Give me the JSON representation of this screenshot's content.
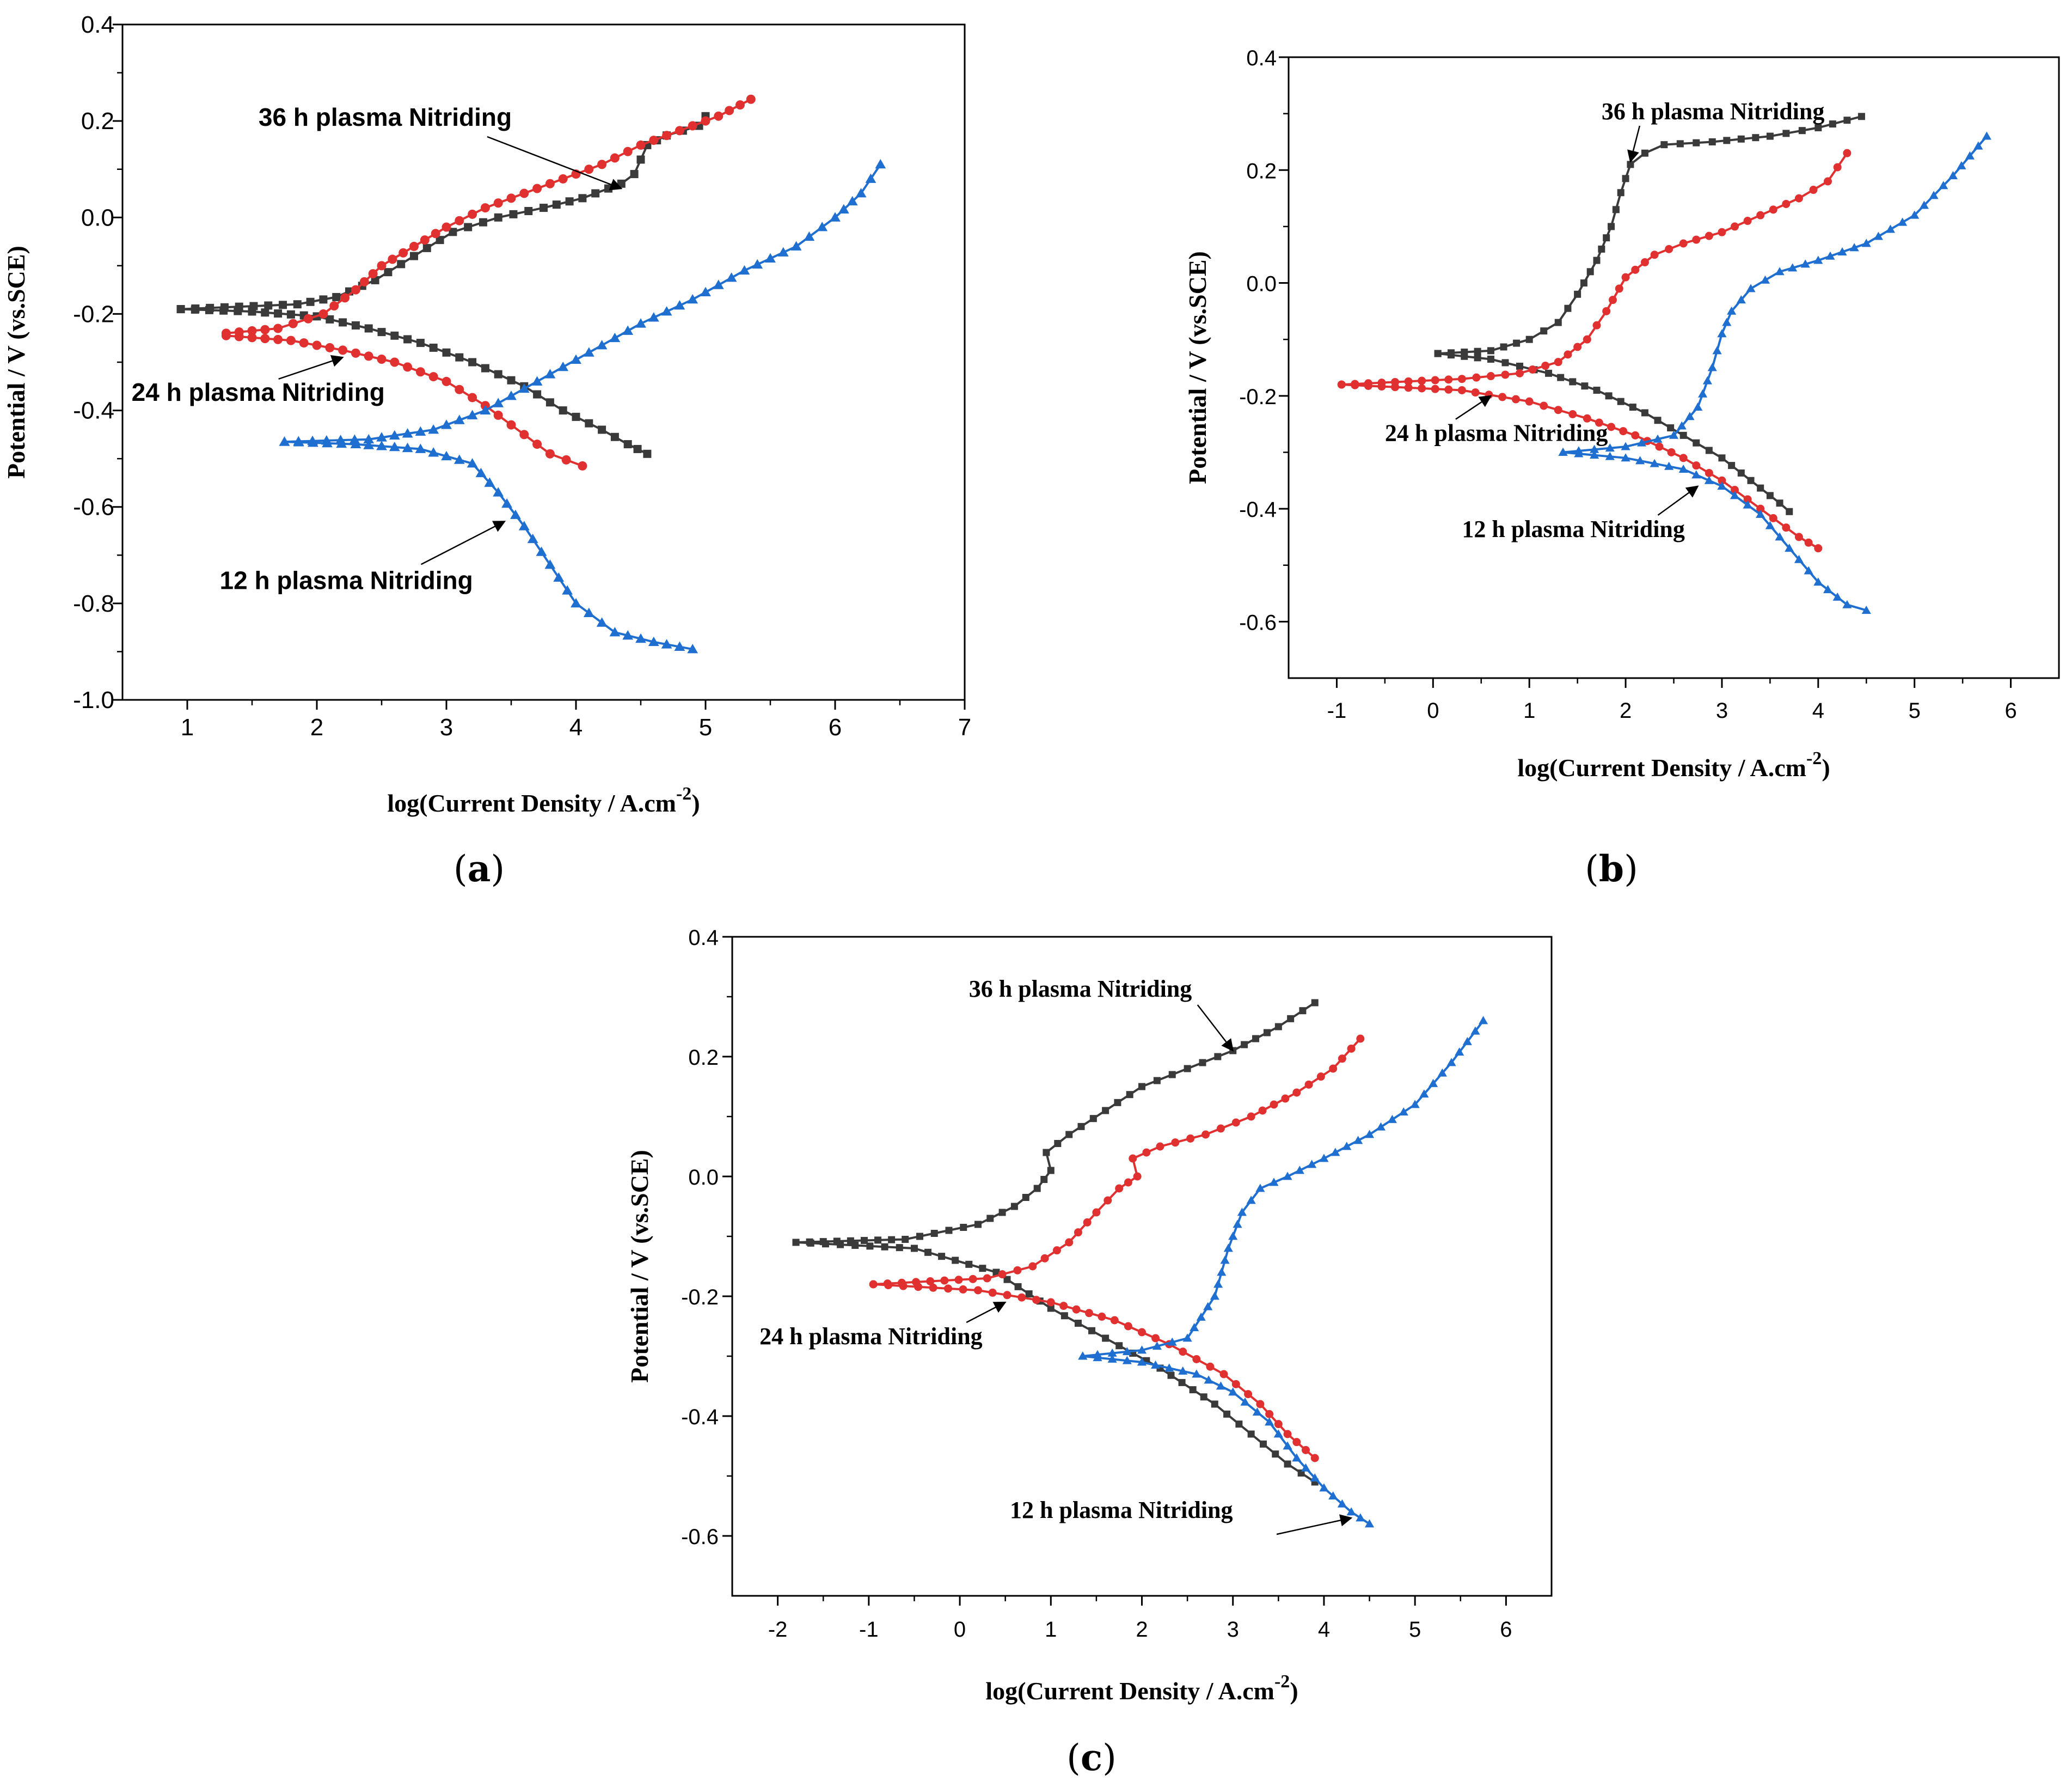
{
  "chart_data": [
    {
      "panel": "a",
      "panel_label": "(a)",
      "type": "line",
      "xlabel": "log(Current Density / A.cm",
      "xlabel_sup": "-2",
      "xlabel_end": ")",
      "ylabel": "Potential / V (vs.SCE)",
      "xlim": [
        0.5,
        7
      ],
      "ylim": [
        -1.0,
        0.4
      ],
      "xticks": [
        "1",
        "2",
        "3",
        "4",
        "5",
        "6",
        "7"
      ],
      "yticks": [
        "-1.0",
        "-0.8",
        "-0.6",
        "-0.4",
        "-0.2",
        "0.0",
        "0.2",
        "0.4"
      ],
      "series": [
        {
          "name": "36 h plasma Nitriding",
          "color": "#3a3a3a",
          "marker": "square",
          "x": [
            0.95,
            1.4,
            1.85,
            2.15,
            2.45,
            2.75,
            3.05,
            3.4,
            3.75,
            4.05,
            4.35,
            4.45,
            4.55,
            4.7,
            4.95,
            5.0
          ],
          "y": [
            -0.19,
            -0.185,
            -0.18,
            -0.165,
            -0.13,
            -0.08,
            -0.03,
            0.0,
            0.02,
            0.04,
            0.07,
            0.09,
            0.15,
            0.17,
            0.19,
            0.21
          ],
          "x2": [
            0.95,
            1.5,
            2.0,
            2.4,
            2.8,
            3.2,
            3.6,
            3.9,
            4.2,
            4.4,
            4.55
          ],
          "y2": [
            -0.19,
            -0.195,
            -0.205,
            -0.23,
            -0.26,
            -0.3,
            -0.35,
            -0.4,
            -0.44,
            -0.47,
            -0.49
          ]
        },
        {
          "name": "24 h plasma Nitriding",
          "color": "#e03030",
          "marker": "circle",
          "x": [
            1.3,
            1.7,
            2.05,
            2.3,
            2.5,
            2.75,
            3.0,
            3.3,
            3.6,
            3.9,
            4.2,
            4.5,
            4.8,
            5.1,
            5.35
          ],
          "y": [
            -0.24,
            -0.23,
            -0.2,
            -0.15,
            -0.1,
            -0.06,
            -0.02,
            0.02,
            0.05,
            0.08,
            0.11,
            0.15,
            0.18,
            0.21,
            0.245
          ],
          "x2": [
            1.3,
            1.8,
            2.2,
            2.6,
            3.0,
            3.3,
            3.6,
            3.8,
            4.05
          ],
          "y2": [
            -0.245,
            -0.255,
            -0.275,
            -0.3,
            -0.34,
            -0.39,
            -0.45,
            -0.49,
            -0.515
          ]
        },
        {
          "name": "12 h plasma Nitriding",
          "color": "#1f6fd1",
          "marker": "triangle",
          "x": [
            1.75,
            2.4,
            2.9,
            3.3,
            3.7,
            4.1,
            4.5,
            4.9,
            5.3,
            5.7,
            6.0,
            6.2,
            6.35
          ],
          "y": [
            -0.465,
            -0.46,
            -0.44,
            -0.4,
            -0.34,
            -0.28,
            -0.22,
            -0.17,
            -0.11,
            -0.06,
            0.0,
            0.05,
            0.11
          ],
          "x2": [
            1.75,
            2.3,
            2.8,
            3.2,
            3.4,
            3.6,
            3.8,
            4.0,
            4.3,
            4.6,
            4.9
          ],
          "y2": [
            -0.465,
            -0.47,
            -0.48,
            -0.51,
            -0.57,
            -0.64,
            -0.72,
            -0.8,
            -0.86,
            -0.88,
            -0.895
          ]
        }
      ],
      "annotations": [
        {
          "text": "36 h plasma Nitriding",
          "tx": 1.55,
          "ty": 0.19,
          "ax": 4.35,
          "ay": 0.06
        },
        {
          "text": "24 h plasma Nitriding",
          "tx": 0.57,
          "ty": -0.38,
          "ax": 2.2,
          "ay": -0.29
        },
        {
          "text": "12 h plasma Nitriding",
          "tx": 1.25,
          "ty": -0.77,
          "ax": 3.45,
          "ay": -0.63
        }
      ]
    },
    {
      "panel": "b",
      "panel_label": "(b)",
      "type": "line",
      "xlabel": "log(Current Density / A.cm",
      "xlabel_sup": "-2",
      "xlabel_end": ")",
      "ylabel": "Potential / V (vs.SCE)",
      "xlim": [
        -1.5,
        6.5
      ],
      "ylim": [
        -0.7,
        0.4
      ],
      "xticks": [
        "-1",
        "0",
        "1",
        "2",
        "3",
        "4",
        "5",
        "6"
      ],
      "yticks": [
        "-0.6",
        "-0.4",
        "-0.2",
        "0.0",
        "0.2",
        "0.4"
      ],
      "series": [
        {
          "name": "36 h plasma Nitriding",
          "color": "#3a3a3a",
          "marker": "square",
          "x": [
            0.05,
            0.6,
            1.0,
            1.3,
            1.5,
            1.7,
            1.85,
            1.95,
            2.05,
            2.2,
            2.4,
            2.9,
            3.5,
            4.0,
            4.45
          ],
          "y": [
            -0.125,
            -0.12,
            -0.1,
            -0.07,
            -0.02,
            0.04,
            0.1,
            0.16,
            0.21,
            0.23,
            0.245,
            0.25,
            0.26,
            0.275,
            0.295
          ],
          "x2": [
            0.05,
            0.6,
            1.2,
            1.7,
            2.2,
            2.6,
            3.0,
            3.3,
            3.6,
            3.7
          ],
          "y2": [
            -0.125,
            -0.135,
            -0.16,
            -0.19,
            -0.23,
            -0.27,
            -0.31,
            -0.35,
            -0.39,
            -0.405
          ]
        },
        {
          "name": "24 h plasma Nitriding",
          "color": "#e03030",
          "marker": "circle",
          "x": [
            -0.95,
            0.3,
            0.9,
            1.3,
            1.6,
            1.8,
            2.0,
            2.3,
            2.6,
            3.0,
            3.4,
            3.8,
            4.1,
            4.3
          ],
          "y": [
            -0.18,
            -0.17,
            -0.16,
            -0.14,
            -0.1,
            -0.05,
            0.01,
            0.05,
            0.07,
            0.09,
            0.12,
            0.15,
            0.18,
            0.23
          ],
          "x2": [
            -0.95,
            0.3,
            1.0,
            1.6,
            2.1,
            2.6,
            3.0,
            3.4,
            3.8,
            4.0
          ],
          "y2": [
            -0.18,
            -0.19,
            -0.21,
            -0.24,
            -0.27,
            -0.31,
            -0.35,
            -0.4,
            -0.45,
            -0.47
          ]
        },
        {
          "name": "12 h plasma Nitriding",
          "color": "#1f6fd1",
          "marker": "triangle",
          "x": [
            1.35,
            2.0,
            2.5,
            2.75,
            2.9,
            3.0,
            3.1,
            3.3,
            3.6,
            4.0,
            4.5,
            5.0,
            5.4,
            5.75
          ],
          "y": [
            -0.3,
            -0.29,
            -0.27,
            -0.22,
            -0.15,
            -0.09,
            -0.05,
            -0.01,
            0.02,
            0.04,
            0.07,
            0.12,
            0.19,
            0.26
          ],
          "x2": [
            1.35,
            2.0,
            2.6,
            3.0,
            3.4,
            3.7,
            4.0,
            4.3,
            4.5
          ],
          "y2": [
            -0.3,
            -0.31,
            -0.33,
            -0.36,
            -0.41,
            -0.47,
            -0.53,
            -0.57,
            -0.58
          ]
        }
      ],
      "annotations": [
        {
          "text": "36 h plasma Nitriding",
          "tx": 1.75,
          "ty": 0.29,
          "ax": 2.05,
          "ay": 0.215
        },
        {
          "text": "24 h plasma Nitriding",
          "tx": -0.5,
          "ty": -0.28,
          "ax": 0.6,
          "ay": -0.2
        },
        {
          "text": "12 h plasma Nitriding",
          "tx": 0.3,
          "ty": -0.45,
          "ax": 2.75,
          "ay": -0.36
        }
      ]
    },
    {
      "panel": "c",
      "panel_label": "(c)",
      "type": "line",
      "xlabel": "log(Current Density / A.cm",
      "xlabel_sup": "-2",
      "xlabel_end": ")",
      "ylabel": "Potential / V (vs.SCE)",
      "xlim": [
        -2.5,
        6.5
      ],
      "ylim": [
        -0.7,
        0.4
      ],
      "xticks": [
        "-2",
        "-1",
        "0",
        "1",
        "2",
        "3",
        "4",
        "5",
        "6"
      ],
      "yticks": [
        "-0.6",
        "-0.4",
        "-0.2",
        "0.0",
        "0.2",
        "0.4"
      ],
      "series": [
        {
          "name": "36 h plasma Nitriding",
          "color": "#3a3a3a",
          "marker": "square",
          "x": [
            -1.8,
            -0.6,
            0.2,
            0.6,
            0.85,
            1.0,
            0.95,
            1.2,
            1.6,
            2.0,
            2.5,
            3.0,
            3.5,
            3.9
          ],
          "y": [
            -0.11,
            -0.105,
            -0.08,
            -0.05,
            -0.02,
            0.01,
            0.04,
            0.07,
            0.11,
            0.15,
            0.18,
            0.21,
            0.25,
            0.29
          ],
          "x2": [
            -1.8,
            -0.5,
            0.4,
            1.0,
            1.6,
            2.2,
            2.8,
            3.2,
            3.6,
            3.9
          ],
          "y2": [
            -0.11,
            -0.12,
            -0.16,
            -0.22,
            -0.27,
            -0.32,
            -0.38,
            -0.43,
            -0.48,
            -0.51
          ]
        },
        {
          "name": "24 h plasma Nitriding",
          "color": "#e03030",
          "marker": "circle",
          "x": [
            -0.95,
            0.3,
            0.8,
            1.2,
            1.5,
            1.75,
            1.95,
            1.9,
            2.2,
            2.7,
            3.2,
            3.7,
            4.1,
            4.4
          ],
          "y": [
            -0.18,
            -0.17,
            -0.15,
            -0.11,
            -0.06,
            -0.02,
            0.0,
            0.03,
            0.05,
            0.07,
            0.1,
            0.14,
            0.18,
            0.23
          ],
          "x2": [
            -0.95,
            0.2,
            1.0,
            1.7,
            2.3,
            2.9,
            3.3,
            3.6,
            3.9
          ],
          "y2": [
            -0.18,
            -0.19,
            -0.21,
            -0.24,
            -0.28,
            -0.33,
            -0.38,
            -0.43,
            -0.47
          ]
        },
        {
          "name": "12 h plasma Nitriding",
          "color": "#1f6fd1",
          "marker": "triangle",
          "x": [
            1.35,
            2.0,
            2.5,
            2.8,
            2.95,
            3.1,
            3.3,
            3.6,
            4.0,
            4.5,
            5.0,
            5.4,
            5.75
          ],
          "y": [
            -0.3,
            -0.29,
            -0.27,
            -0.2,
            -0.12,
            -0.06,
            -0.02,
            0.0,
            0.03,
            0.07,
            0.12,
            0.19,
            0.26
          ],
          "x2": [
            1.35,
            2.0,
            2.6,
            3.0,
            3.4,
            3.7,
            4.0,
            4.3,
            4.5
          ],
          "y2": [
            -0.3,
            -0.31,
            -0.33,
            -0.36,
            -0.41,
            -0.47,
            -0.52,
            -0.56,
            -0.58
          ]
        }
      ],
      "annotations": [
        {
          "text": "36 h plasma Nitriding",
          "tx": 0.1,
          "ty": 0.3,
          "ax": 3.0,
          "ay": 0.21
        },
        {
          "text": "24 h plasma Nitriding",
          "tx": -2.2,
          "ty": -0.28,
          "ax": 0.5,
          "ay": -0.21
        },
        {
          "text": "12 h plasma Nitriding",
          "tx": 0.55,
          "ty": -0.57,
          "ax": 4.3,
          "ay": -0.57
        }
      ]
    }
  ]
}
